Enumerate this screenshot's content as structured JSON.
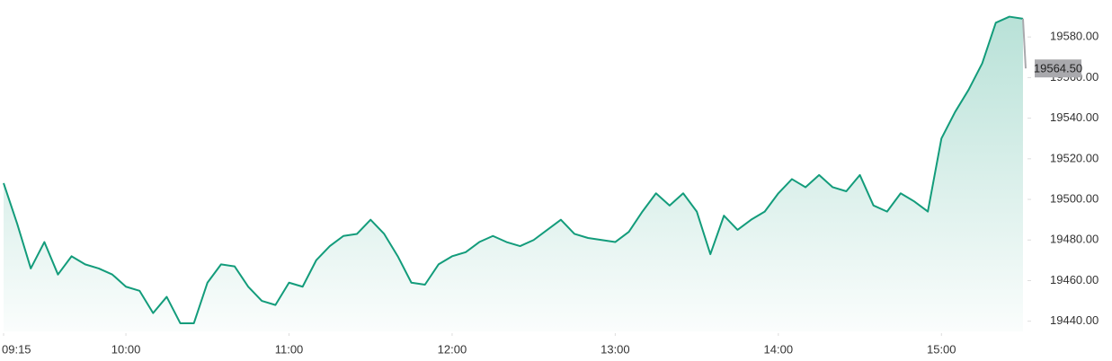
{
  "chart_data": {
    "type": "line",
    "x": [
      "09:15",
      "09:20",
      "09:25",
      "09:30",
      "09:35",
      "09:40",
      "09:45",
      "09:50",
      "09:55",
      "10:00",
      "10:05",
      "10:10",
      "10:15",
      "10:20",
      "10:25",
      "10:30",
      "10:35",
      "10:40",
      "10:45",
      "10:50",
      "10:55",
      "11:00",
      "11:05",
      "11:10",
      "11:15",
      "11:20",
      "11:25",
      "11:30",
      "11:35",
      "11:40",
      "11:45",
      "11:50",
      "11:55",
      "12:00",
      "12:05",
      "12:10",
      "12:15",
      "12:20",
      "12:25",
      "12:30",
      "12:35",
      "12:40",
      "12:45",
      "12:50",
      "12:55",
      "13:00",
      "13:05",
      "13:10",
      "13:15",
      "13:20",
      "13:25",
      "13:30",
      "13:35",
      "13:40",
      "13:45",
      "13:50",
      "13:55",
      "14:00",
      "14:05",
      "14:10",
      "14:15",
      "14:20",
      "14:25",
      "14:30",
      "14:35",
      "14:40",
      "14:45",
      "14:50",
      "14:55",
      "15:00",
      "15:05",
      "15:10",
      "15:15",
      "15:20",
      "15:25",
      "15:30"
    ],
    "series": [
      {
        "color": "#139c7b",
        "values": [
          19508,
          19488,
          19466,
          19479,
          19463,
          19472,
          19468,
          19466,
          19463,
          19457,
          19455,
          19444,
          19452,
          19439,
          19439,
          19459,
          19468,
          19467,
          19457,
          19450,
          19448,
          19459,
          19457,
          19470,
          19477,
          19482,
          19483,
          19490,
          19483,
          19472,
          19459,
          19458,
          19468,
          19472,
          19474,
          19479,
          19482,
          19479,
          19477,
          19480,
          19485,
          19490,
          19483,
          19481,
          19480,
          19479,
          19484,
          19494,
          19503,
          19497,
          19503,
          19494,
          19473,
          19492,
          19485,
          19490,
          19494,
          19503,
          19510,
          19506,
          19512,
          19506,
          19504,
          19512,
          19497,
          19494,
          19503,
          19499,
          19494,
          19530,
          19543,
          19554,
          19567,
          19587,
          19590,
          19589
        ]
      }
    ],
    "annotations": [
      {
        "x": "15:31",
        "value": 19564.5,
        "label": "19564.50",
        "color": "#a9a9ad"
      }
    ],
    "xlim": [
      "09:15",
      "15:31"
    ],
    "xticks": [
      "09:15",
      "10:00",
      "11:00",
      "12:00",
      "13:00",
      "14:00",
      "15:00"
    ],
    "ylim": [
      19435,
      19596
    ],
    "yticks": [
      {
        "value": 19440,
        "label": "19440.00"
      },
      {
        "value": 19460,
        "label": "19460.00"
      },
      {
        "value": 19480,
        "label": "19480.00"
      },
      {
        "value": 19500,
        "label": "19500.00"
      },
      {
        "value": 19520,
        "label": "19520.00"
      },
      {
        "value": 19540,
        "label": "19540.00"
      },
      {
        "value": 19560,
        "label": "19560.00"
      },
      {
        "value": 19580,
        "label": "19580.00"
      }
    ]
  }
}
